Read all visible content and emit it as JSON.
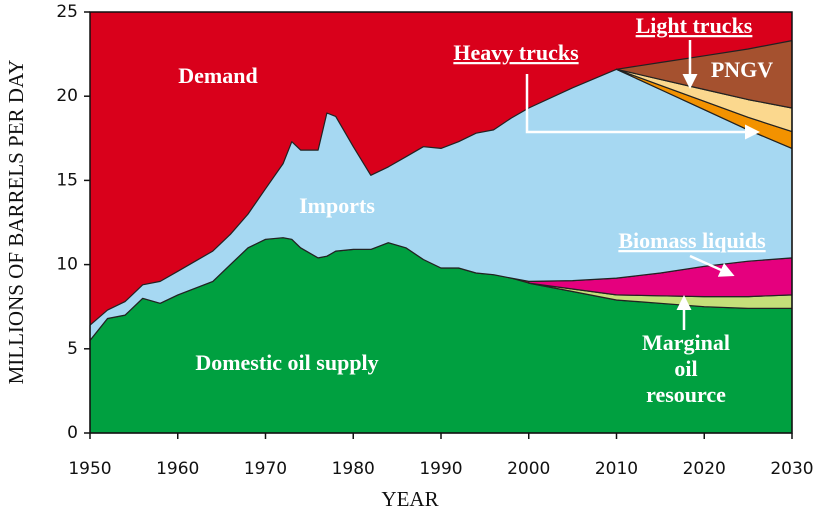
{
  "chart_data": {
    "type": "stacked_area",
    "xlabel": "YEAR",
    "ylabel": "MILLIONS OF BARRELS PER DAY",
    "demand_label": "Demand",
    "background_color": "#d9001b",
    "x": [
      1950,
      1952,
      1954,
      1956,
      1958,
      1960,
      1962,
      1964,
      1966,
      1968,
      1970,
      1972,
      1973,
      1974,
      1976,
      1977,
      1978,
      1980,
      1982,
      1984,
      1986,
      1988,
      1990,
      1992,
      1994,
      1996,
      1998,
      2000,
      2005,
      2010,
      2015,
      2020,
      2025,
      2030
    ],
    "series": [
      {
        "name": "Domestic oil supply",
        "color": "#00a040",
        "values": [
          5.5,
          6.8,
          7.0,
          8.0,
          7.7,
          8.2,
          8.6,
          9.0,
          10.0,
          11.0,
          11.5,
          11.6,
          11.5,
          11.0,
          10.4,
          10.5,
          10.8,
          10.9,
          10.9,
          11.3,
          11.0,
          10.3,
          9.8,
          9.8,
          9.5,
          9.4,
          9.2,
          8.9,
          8.4,
          7.9,
          7.7,
          7.5,
          7.4,
          7.4
        ]
      },
      {
        "name": "Marginal oil resource",
        "color": "#c5df7a",
        "values": [
          null,
          null,
          null,
          null,
          null,
          null,
          null,
          null,
          null,
          null,
          null,
          null,
          null,
          null,
          null,
          null,
          null,
          null,
          null,
          null,
          null,
          null,
          null,
          null,
          null,
          null,
          null,
          0,
          0.15,
          0.3,
          0.45,
          0.6,
          0.7,
          0.8
        ]
      },
      {
        "name": "Biomass liquids",
        "color": "#e5007e",
        "values": [
          null,
          null,
          null,
          null,
          null,
          null,
          null,
          null,
          null,
          null,
          null,
          null,
          null,
          null,
          null,
          null,
          null,
          null,
          null,
          null,
          null,
          null,
          null,
          null,
          null,
          null,
          null,
          0.1,
          0.5,
          1.0,
          1.35,
          1.8,
          2.1,
          2.2
        ]
      },
      {
        "name": "Imports",
        "color": "#a6d8f2",
        "values": [
          0.9,
          0.5,
          0.8,
          0.8,
          1.3,
          1.4,
          1.6,
          1.8,
          1.8,
          2.0,
          3.0,
          4.4,
          5.8,
          5.8,
          6.4,
          8.5,
          8.0,
          6.1,
          4.4,
          4.5,
          5.4,
          6.7,
          7.1,
          7.5,
          8.3,
          8.6,
          9.5,
          10.3,
          11.45,
          12.4,
          10.9,
          9.3,
          7.8,
          6.5
        ]
      },
      {
        "name": "Heavy trucks",
        "color": "#f39200",
        "values": [
          null,
          null,
          null,
          null,
          null,
          null,
          null,
          null,
          null,
          null,
          null,
          null,
          null,
          null,
          null,
          null,
          null,
          null,
          null,
          null,
          null,
          null,
          null,
          null,
          null,
          null,
          null,
          null,
          null,
          0,
          0.25,
          0.5,
          0.75,
          1.0
        ]
      },
      {
        "name": "Light trucks",
        "color": "#fbd88e",
        "values": [
          null,
          null,
          null,
          null,
          null,
          null,
          null,
          null,
          null,
          null,
          null,
          null,
          null,
          null,
          null,
          null,
          null,
          null,
          null,
          null,
          null,
          null,
          null,
          null,
          null,
          null,
          null,
          null,
          null,
          0,
          0.35,
          0.7,
          1.05,
          1.4
        ]
      },
      {
        "name": "PNGV",
        "color": "#a5512f",
        "values": [
          null,
          null,
          null,
          null,
          null,
          null,
          null,
          null,
          null,
          null,
          null,
          null,
          null,
          null,
          null,
          null,
          null,
          null,
          null,
          null,
          null,
          null,
          null,
          null,
          null,
          null,
          null,
          null,
          null,
          0,
          1.0,
          2.0,
          3.0,
          4.0
        ]
      }
    ],
    "xlim": [
      1950,
      2030
    ],
    "xticks": [
      1950,
      1960,
      1970,
      1980,
      1990,
      2000,
      2010,
      2020,
      2030
    ],
    "ylim": [
      0,
      25
    ],
    "yticks": [
      0,
      5,
      10,
      15,
      20,
      25
    ]
  }
}
